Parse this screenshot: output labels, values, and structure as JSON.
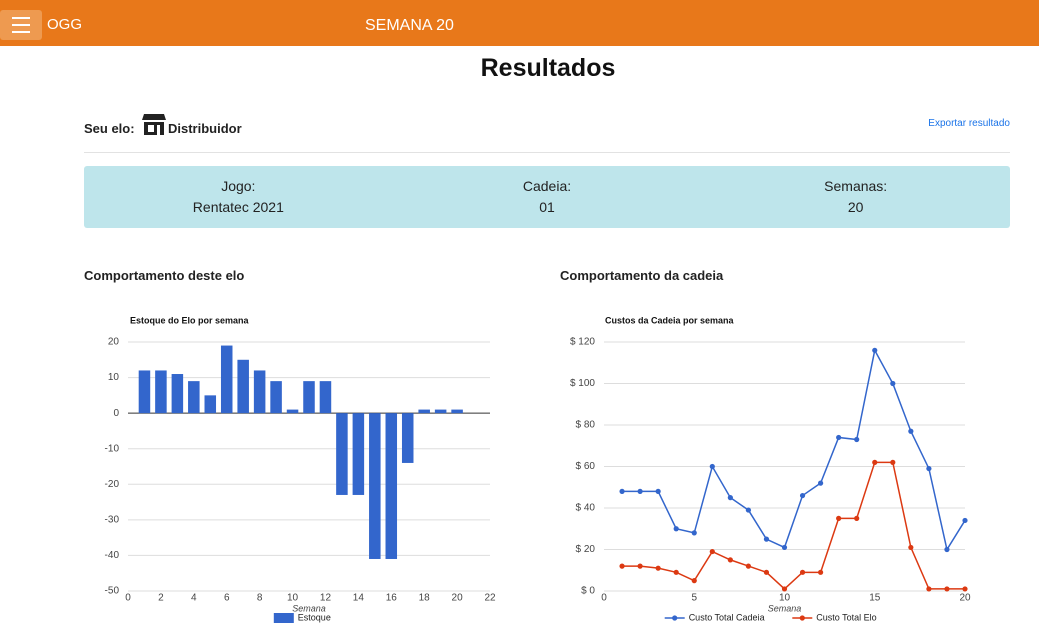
{
  "header": {
    "brand": "OGG",
    "week": "SEMANA 20"
  },
  "page_title": "Resultados",
  "elo": {
    "label": "Seu elo:",
    "value": "Distribuidor"
  },
  "export_link": "Exportar resultado",
  "info": [
    {
      "label": "Jogo:",
      "value": "Rentatec 2021"
    },
    {
      "label": "Cadeia:",
      "value": "01"
    },
    {
      "label": "Semanas:",
      "value": "20"
    }
  ],
  "sections": [
    "Comportamento deste elo",
    "Comportamento da cadeia"
  ],
  "chart_data": [
    {
      "type": "bar",
      "title": "Estoque do Elo por semana",
      "x_label": "Semana",
      "x": [
        1,
        2,
        3,
        4,
        5,
        6,
        7,
        8,
        9,
        10,
        11,
        12,
        13,
        14,
        15,
        16,
        17,
        18,
        19,
        20
      ],
      "series": [
        {
          "name": "Estoque",
          "color": "#3366cc",
          "values": [
            12,
            12,
            11,
            9,
            5,
            19,
            15,
            12,
            9,
            1,
            9,
            9,
            -23,
            -23,
            -41,
            -41,
            -14,
            1,
            1,
            1
          ]
        }
      ],
      "xlim": [
        0,
        22
      ],
      "xticks": [
        0,
        2,
        4,
        6,
        8,
        10,
        12,
        14,
        16,
        18,
        20,
        22
      ],
      "ylim": [
        -50,
        20
      ],
      "yticks": [
        -50,
        -40,
        -30,
        -20,
        -10,
        0,
        10,
        20
      ],
      "grid": true,
      "legend": "bottom"
    },
    {
      "type": "line",
      "title": "Custos da Cadeia por semana",
      "x_label": "Semana",
      "x": [
        1,
        2,
        3,
        4,
        5,
        6,
        7,
        8,
        9,
        10,
        11,
        12,
        13,
        14,
        15,
        16,
        17,
        18,
        19,
        20
      ],
      "series": [
        {
          "name": "Custo Total Cadeia",
          "color": "#3366cc",
          "values": [
            48,
            48,
            48,
            30,
            28,
            60,
            45,
            39,
            25,
            21,
            46,
            52,
            74,
            73,
            116,
            100,
            77,
            59,
            20,
            34
          ]
        },
        {
          "name": "Custo Total Elo",
          "color": "#dc3912",
          "values": [
            12,
            12,
            11,
            9,
            5,
            19,
            15,
            12,
            9,
            1,
            9,
            9,
            35,
            35,
            62,
            62,
            21,
            1,
            1,
            1
          ]
        }
      ],
      "xlim": [
        0,
        20
      ],
      "xticks": [
        0,
        5,
        10,
        15,
        20
      ],
      "ylim": [
        0,
        120
      ],
      "yticks": [
        {
          "value": 0,
          "label": "$ 0"
        },
        {
          "value": 20,
          "label": "$ 20"
        },
        {
          "value": 40,
          "label": "$ 40"
        },
        {
          "value": 60,
          "label": "$ 60"
        },
        {
          "value": 80,
          "label": "$ 80"
        },
        {
          "value": 100,
          "label": "$ 100"
        },
        {
          "value": 120,
          "label": "$ 120"
        }
      ],
      "grid": true,
      "legend": "bottom"
    }
  ]
}
